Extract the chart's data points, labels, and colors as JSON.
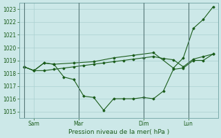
{
  "bg_color": "#cce8e8",
  "grid_color": "#aad0d0",
  "line_color": "#1a5c1a",
  "spine_color": "#7aaaaa",
  "xlabel": "Pression niveau de la mer( hPa )",
  "ylim": [
    1014.5,
    1023.5
  ],
  "xlim": [
    -0.5,
    19.5
  ],
  "yticks": [
    1015,
    1016,
    1017,
    1018,
    1019,
    1020,
    1021,
    1022,
    1023
  ],
  "xtick_positions": [
    1.0,
    5.5,
    12.0,
    16.5
  ],
  "xtick_labels": [
    "Sam",
    "Mar",
    "Dim",
    "Lun"
  ],
  "vline_positions": [
    0.0,
    5.5,
    12.0,
    16.5
  ],
  "series1_x": [
    0,
    1,
    2,
    3,
    4,
    5,
    6,
    7,
    8,
    9,
    10,
    11,
    12,
    13,
    14,
    15,
    16,
    17,
    18,
    19
  ],
  "series1_y": [
    1018.5,
    1018.2,
    1018.2,
    1018.3,
    1018.4,
    1018.5,
    1018.6,
    1018.7,
    1018.8,
    1018.9,
    1019.0,
    1019.1,
    1019.2,
    1019.3,
    1019.15,
    1019.05,
    1018.5,
    1019.1,
    1019.3,
    1019.5
  ],
  "series2_x": [
    0,
    1,
    2,
    3,
    4,
    5,
    6,
    7,
    8,
    9,
    10,
    11,
    12,
    13,
    14,
    15,
    16,
    17,
    18,
    19
  ],
  "series2_y": [
    1018.5,
    1018.2,
    1018.8,
    1018.7,
    1017.7,
    1017.5,
    1016.2,
    1016.1,
    1015.1,
    1016.0,
    1016.0,
    1016.0,
    1016.1,
    1016.0,
    1016.6,
    1018.3,
    1018.4,
    1019.0,
    1019.0,
    1019.5
  ],
  "series3_x": [
    0,
    1,
    2,
    3,
    5,
    7,
    9,
    11,
    13,
    15,
    16,
    17,
    18,
    19
  ],
  "series3_y": [
    1018.5,
    1018.2,
    1018.8,
    1018.7,
    1018.8,
    1018.9,
    1019.2,
    1019.4,
    1019.6,
    1018.4,
    1019.2,
    1021.5,
    1022.2,
    1023.2
  ]
}
